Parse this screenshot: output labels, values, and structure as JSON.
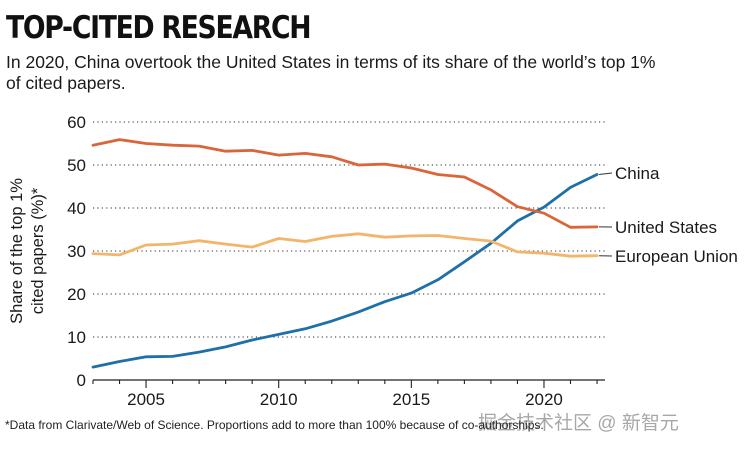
{
  "header": {
    "title": "TOP-CITED RESEARCH",
    "subtitle": "In 2020, China overtook the United States in terms of its share of the world’s top 1% of cited papers."
  },
  "footnote": "*Data from Clarivate/Web of Science. Proportions add to more than 100% because of co-authorships.",
  "watermark": "掘金技术社区 @ 新智元",
  "colors": {
    "china": "#1f6fa8",
    "united_states": "#d9663a",
    "european_union": "#f2b56b",
    "grid": "#555555",
    "text": "#1a1a1a"
  },
  "chart_data": {
    "type": "line",
    "title": "TOP-CITED RESEARCH",
    "xlabel": "",
    "ylabel": "Share of the top 1% cited papers (%)*",
    "xlim": [
      2003,
      2022.3
    ],
    "ylim": [
      0,
      60
    ],
    "xticks": [
      2005,
      2010,
      2015,
      2020
    ],
    "yticks": [
      0,
      10,
      20,
      30,
      40,
      50,
      60
    ],
    "grid": "horizontal-dotted",
    "legend": "inline-right",
    "series": [
      {
        "name": "China",
        "color": "#1f6fa8",
        "x": [
          2003,
          2004,
          2005,
          2006,
          2007,
          2008,
          2009,
          2010,
          2011,
          2012,
          2013,
          2014,
          2015,
          2016,
          2017,
          2018,
          2019,
          2020,
          2021,
          2022
        ],
        "values": [
          3,
          4.3,
          5.4,
          5.5,
          6.5,
          7.7,
          9.3,
          10.6,
          11.9,
          13.7,
          15.8,
          18.2,
          20.2,
          23.3,
          27.5,
          31.8,
          37,
          40.2,
          44.8,
          47.8
        ]
      },
      {
        "name": "United States",
        "color": "#d9663a",
        "x": [
          2003,
          2004,
          2005,
          2006,
          2007,
          2008,
          2009,
          2010,
          2011,
          2012,
          2013,
          2014,
          2015,
          2016,
          2017,
          2018,
          2019,
          2020,
          2021,
          2022
        ],
        "values": [
          54.6,
          55.9,
          55,
          54.6,
          54.4,
          53.2,
          53.4,
          52.3,
          52.7,
          51.9,
          50,
          50.2,
          49.3,
          47.8,
          47.2,
          44.2,
          40.3,
          38.8,
          35.5,
          35.6
        ]
      },
      {
        "name": "European Union",
        "color": "#f2b56b",
        "x": [
          2003,
          2004,
          2005,
          2006,
          2007,
          2008,
          2009,
          2010,
          2011,
          2012,
          2013,
          2014,
          2015,
          2016,
          2017,
          2018,
          2019,
          2020,
          2021,
          2022
        ],
        "values": [
          29.4,
          29.1,
          31.4,
          31.6,
          32.4,
          31.6,
          30.9,
          32.9,
          32.2,
          33.4,
          34,
          33.2,
          33.5,
          33.6,
          32.9,
          32.3,
          29.8,
          29.5,
          28.8,
          28.9
        ]
      }
    ]
  }
}
